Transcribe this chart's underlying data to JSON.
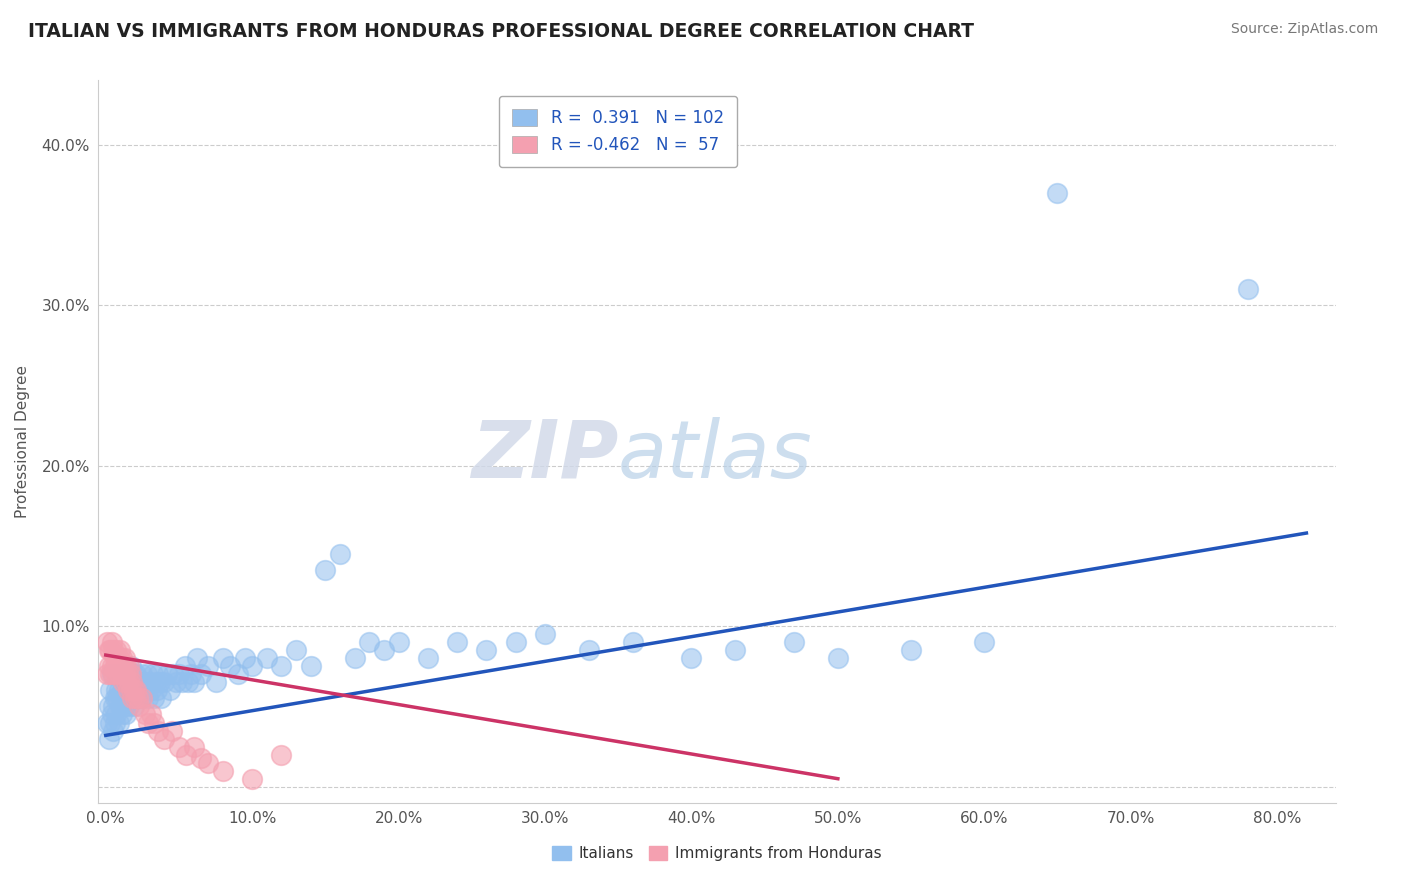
{
  "title": "ITALIAN VS IMMIGRANTS FROM HONDURAS PROFESSIONAL DEGREE CORRELATION CHART",
  "source_text": "Source: ZipAtlas.com",
  "ylabel": "Professional Degree",
  "watermark_zip": "ZIP",
  "watermark_atlas": "atlas",
  "xlim": [
    -0.005,
    0.84
  ],
  "ylim": [
    -0.01,
    0.44
  ],
  "xticks": [
    0.0,
    0.1,
    0.2,
    0.3,
    0.4,
    0.5,
    0.6,
    0.7,
    0.8
  ],
  "xticklabels": [
    "0.0%",
    "10.0%",
    "20.0%",
    "30.0%",
    "40.0%",
    "50.0%",
    "60.0%",
    "70.0%",
    "80.0%"
  ],
  "yticks": [
    0.0,
    0.1,
    0.2,
    0.3,
    0.4
  ],
  "yticklabels": [
    "",
    "10.0%",
    "20.0%",
    "30.0%",
    "40.0%"
  ],
  "legend1_r": "0.391",
  "legend1_n": "102",
  "legend2_r": "-0.462",
  "legend2_n": "57",
  "blue_color": "#92BFEE",
  "pink_color": "#F4A0B0",
  "blue_line_color": "#2255BB",
  "pink_line_color": "#CC3366",
  "title_color": "#222222",
  "source_color": "#777777",
  "background_color": "#ffffff",
  "grid_color": "#cccccc",
  "blue_scatter": [
    [
      0.001,
      0.04
    ],
    [
      0.002,
      0.05
    ],
    [
      0.002,
      0.03
    ],
    [
      0.003,
      0.06
    ],
    [
      0.003,
      0.04
    ],
    [
      0.004,
      0.045
    ],
    [
      0.004,
      0.07
    ],
    [
      0.005,
      0.05
    ],
    [
      0.005,
      0.035
    ],
    [
      0.006,
      0.055
    ],
    [
      0.006,
      0.04
    ],
    [
      0.007,
      0.06
    ],
    [
      0.007,
      0.045
    ],
    [
      0.008,
      0.055
    ],
    [
      0.008,
      0.07
    ],
    [
      0.009,
      0.04
    ],
    [
      0.009,
      0.06
    ],
    [
      0.01,
      0.05
    ],
    [
      0.01,
      0.07
    ],
    [
      0.011,
      0.045
    ],
    [
      0.011,
      0.06
    ],
    [
      0.012,
      0.055
    ],
    [
      0.012,
      0.07
    ],
    [
      0.013,
      0.05
    ],
    [
      0.013,
      0.065
    ],
    [
      0.014,
      0.06
    ],
    [
      0.014,
      0.045
    ],
    [
      0.015,
      0.065
    ],
    [
      0.015,
      0.055
    ],
    [
      0.016,
      0.07
    ],
    [
      0.016,
      0.05
    ],
    [
      0.017,
      0.06
    ],
    [
      0.017,
      0.075
    ],
    [
      0.018,
      0.055
    ],
    [
      0.018,
      0.065
    ],
    [
      0.019,
      0.07
    ],
    [
      0.019,
      0.05
    ],
    [
      0.02,
      0.065
    ],
    [
      0.02,
      0.055
    ],
    [
      0.021,
      0.07
    ],
    [
      0.022,
      0.06
    ],
    [
      0.023,
      0.065
    ],
    [
      0.024,
      0.055
    ],
    [
      0.025,
      0.07
    ],
    [
      0.026,
      0.06
    ],
    [
      0.027,
      0.065
    ],
    [
      0.028,
      0.07
    ],
    [
      0.029,
      0.055
    ],
    [
      0.03,
      0.065
    ],
    [
      0.031,
      0.06
    ],
    [
      0.032,
      0.07
    ],
    [
      0.033,
      0.055
    ],
    [
      0.034,
      0.065
    ],
    [
      0.035,
      0.06
    ],
    [
      0.036,
      0.07
    ],
    [
      0.037,
      0.065
    ],
    [
      0.038,
      0.055
    ],
    [
      0.04,
      0.065
    ],
    [
      0.042,
      0.07
    ],
    [
      0.044,
      0.06
    ],
    [
      0.046,
      0.07
    ],
    [
      0.048,
      0.065
    ],
    [
      0.05,
      0.07
    ],
    [
      0.052,
      0.065
    ],
    [
      0.054,
      0.075
    ],
    [
      0.056,
      0.065
    ],
    [
      0.058,
      0.07
    ],
    [
      0.06,
      0.065
    ],
    [
      0.062,
      0.08
    ],
    [
      0.065,
      0.07
    ],
    [
      0.07,
      0.075
    ],
    [
      0.075,
      0.065
    ],
    [
      0.08,
      0.08
    ],
    [
      0.085,
      0.075
    ],
    [
      0.09,
      0.07
    ],
    [
      0.095,
      0.08
    ],
    [
      0.1,
      0.075
    ],
    [
      0.11,
      0.08
    ],
    [
      0.12,
      0.075
    ],
    [
      0.13,
      0.085
    ],
    [
      0.14,
      0.075
    ],
    [
      0.15,
      0.135
    ],
    [
      0.16,
      0.145
    ],
    [
      0.17,
      0.08
    ],
    [
      0.18,
      0.09
    ],
    [
      0.19,
      0.085
    ],
    [
      0.2,
      0.09
    ],
    [
      0.22,
      0.08
    ],
    [
      0.24,
      0.09
    ],
    [
      0.26,
      0.085
    ],
    [
      0.28,
      0.09
    ],
    [
      0.3,
      0.095
    ],
    [
      0.33,
      0.085
    ],
    [
      0.36,
      0.09
    ],
    [
      0.4,
      0.08
    ],
    [
      0.43,
      0.085
    ],
    [
      0.47,
      0.09
    ],
    [
      0.5,
      0.08
    ],
    [
      0.55,
      0.085
    ],
    [
      0.6,
      0.09
    ],
    [
      0.65,
      0.37
    ],
    [
      0.78,
      0.31
    ]
  ],
  "pink_scatter": [
    [
      0.001,
      0.07
    ],
    [
      0.001,
      0.09
    ],
    [
      0.002,
      0.075
    ],
    [
      0.002,
      0.085
    ],
    [
      0.003,
      0.07
    ],
    [
      0.003,
      0.085
    ],
    [
      0.004,
      0.075
    ],
    [
      0.004,
      0.09
    ],
    [
      0.005,
      0.07
    ],
    [
      0.005,
      0.085
    ],
    [
      0.006,
      0.075
    ],
    [
      0.006,
      0.08
    ],
    [
      0.007,
      0.07
    ],
    [
      0.007,
      0.085
    ],
    [
      0.008,
      0.075
    ],
    [
      0.008,
      0.08
    ],
    [
      0.009,
      0.07
    ],
    [
      0.009,
      0.08
    ],
    [
      0.01,
      0.075
    ],
    [
      0.01,
      0.085
    ],
    [
      0.011,
      0.07
    ],
    [
      0.011,
      0.08
    ],
    [
      0.012,
      0.065
    ],
    [
      0.012,
      0.075
    ],
    [
      0.013,
      0.07
    ],
    [
      0.013,
      0.08
    ],
    [
      0.014,
      0.065
    ],
    [
      0.014,
      0.075
    ],
    [
      0.015,
      0.06
    ],
    [
      0.015,
      0.07
    ],
    [
      0.016,
      0.065
    ],
    [
      0.016,
      0.075
    ],
    [
      0.017,
      0.06
    ],
    [
      0.017,
      0.07
    ],
    [
      0.018,
      0.055
    ],
    [
      0.018,
      0.065
    ],
    [
      0.019,
      0.06
    ],
    [
      0.02,
      0.055
    ],
    [
      0.021,
      0.06
    ],
    [
      0.022,
      0.055
    ],
    [
      0.023,
      0.05
    ],
    [
      0.025,
      0.055
    ],
    [
      0.027,
      0.045
    ],
    [
      0.029,
      0.04
    ],
    [
      0.031,
      0.045
    ],
    [
      0.033,
      0.04
    ],
    [
      0.036,
      0.035
    ],
    [
      0.04,
      0.03
    ],
    [
      0.045,
      0.035
    ],
    [
      0.05,
      0.025
    ],
    [
      0.055,
      0.02
    ],
    [
      0.06,
      0.025
    ],
    [
      0.065,
      0.018
    ],
    [
      0.07,
      0.015
    ],
    [
      0.08,
      0.01
    ],
    [
      0.1,
      0.005
    ],
    [
      0.12,
      0.02
    ]
  ],
  "blue_line": [
    [
      0.0,
      0.032
    ],
    [
      0.82,
      0.158
    ]
  ],
  "pink_line": [
    [
      0.0,
      0.082
    ],
    [
      0.5,
      0.005
    ]
  ],
  "figsize": [
    14.06,
    8.92
  ],
  "dpi": 100
}
